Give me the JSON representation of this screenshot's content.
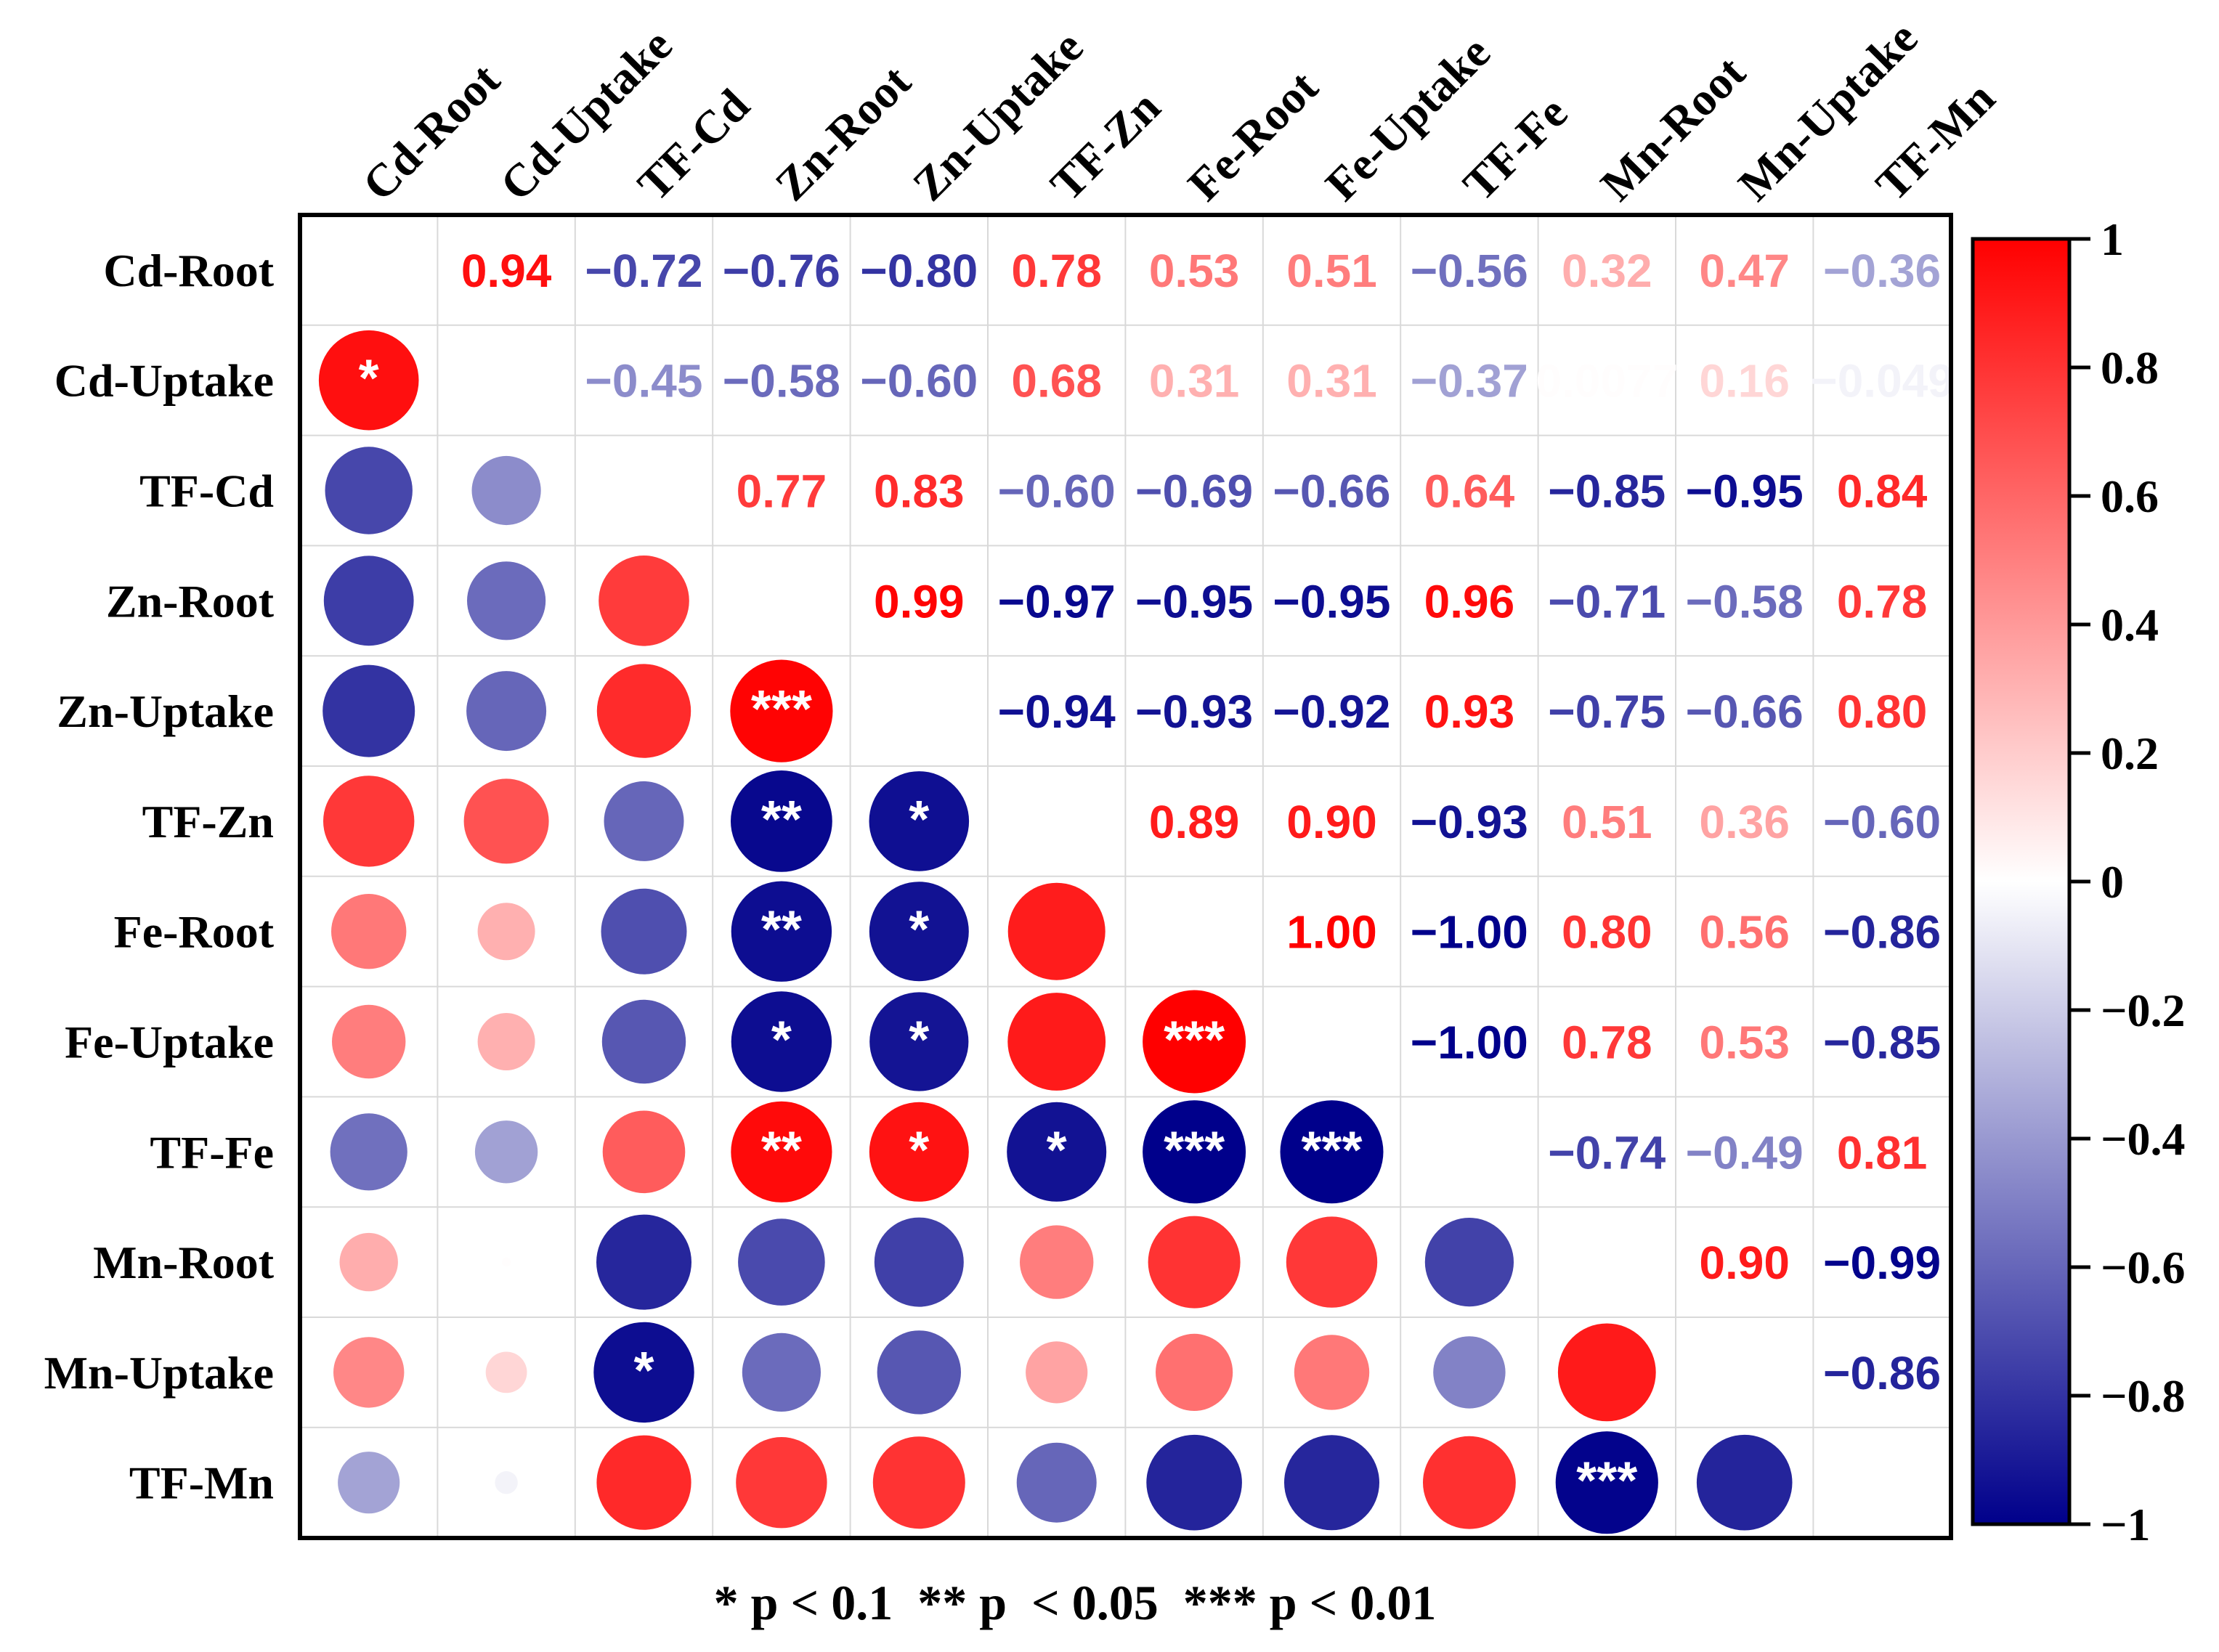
{
  "chart_data": {
    "type": "heatmap",
    "variables": [
      "Cd-Root",
      "Cd-Uptake",
      "TF-Cd",
      "Zn-Root",
      "Zn-Uptake",
      "TF-Zn",
      "Fe-Root",
      "Fe-Uptake",
      "TF-Fe",
      "Mn-Root",
      "Mn-Uptake",
      "TF-Mn"
    ],
    "matrix": [
      [
        null,
        0.94,
        -0.72,
        -0.76,
        -0.8,
        0.78,
        0.53,
        0.51,
        -0.56,
        0.32,
        0.47,
        -0.36
      ],
      [
        0.94,
        null,
        -0.45,
        -0.58,
        -0.6,
        0.68,
        0.31,
        0.31,
        -0.37,
        0.0077,
        0.16,
        -0.049
      ],
      [
        -0.72,
        -0.45,
        null,
        0.77,
        0.83,
        -0.6,
        -0.69,
        -0.66,
        0.64,
        -0.85,
        -0.95,
        0.84
      ],
      [
        -0.76,
        -0.58,
        0.77,
        null,
        0.99,
        -0.97,
        -0.95,
        -0.95,
        0.96,
        -0.71,
        -0.58,
        0.78
      ],
      [
        -0.8,
        -0.6,
        0.83,
        0.99,
        null,
        -0.94,
        -0.93,
        -0.92,
        0.93,
        -0.75,
        -0.66,
        0.8
      ],
      [
        0.78,
        0.68,
        -0.6,
        -0.97,
        -0.94,
        null,
        0.89,
        0.9,
        -0.93,
        0.51,
        0.36,
        -0.6
      ],
      [
        0.53,
        0.31,
        -0.69,
        -0.95,
        -0.93,
        0.89,
        null,
        1.0,
        -1.0,
        0.8,
        0.56,
        -0.86
      ],
      [
        0.51,
        0.31,
        -0.66,
        -0.95,
        -0.92,
        0.9,
        1.0,
        null,
        -1.0,
        0.78,
        0.53,
        -0.85
      ],
      [
        -0.56,
        -0.37,
        0.64,
        0.96,
        0.93,
        -0.93,
        -1.0,
        -1.0,
        null,
        -0.74,
        -0.49,
        0.81
      ],
      [
        0.32,
        0.0077,
        -0.85,
        -0.71,
        -0.75,
        0.51,
        0.8,
        0.78,
        -0.74,
        null,
        0.9,
        -0.99
      ],
      [
        0.47,
        0.16,
        -0.95,
        -0.58,
        -0.66,
        0.36,
        0.56,
        0.53,
        -0.49,
        0.9,
        null,
        -0.86
      ],
      [
        -0.36,
        -0.049,
        0.84,
        0.78,
        0.8,
        -0.6,
        -0.86,
        -0.85,
        0.81,
        -0.99,
        -0.86,
        null
      ]
    ],
    "upper_labels": [
      [
        null,
        "0.94",
        "−0.72",
        "−0.76",
        "−0.80",
        "0.78",
        "0.53",
        "0.51",
        "−0.56",
        "0.32",
        "0.47",
        "−0.36"
      ],
      [
        null,
        null,
        "−0.45",
        "−0.58",
        "−0.60",
        "0.68",
        "0.31",
        "0.31",
        "−0.37",
        "0.0077",
        "0.16",
        "−0.049"
      ],
      [
        null,
        null,
        null,
        "0.77",
        "0.83",
        "−0.60",
        "−0.69",
        "−0.66",
        "0.64",
        "−0.85",
        "−0.95",
        "0.84"
      ],
      [
        null,
        null,
        null,
        null,
        "0.99",
        "−0.97",
        "−0.95",
        "−0.95",
        "0.96",
        "−0.71",
        "−0.58",
        "0.78"
      ],
      [
        null,
        null,
        null,
        null,
        null,
        "−0.94",
        "−0.93",
        "−0.92",
        "0.93",
        "−0.75",
        "−0.66",
        "0.80"
      ],
      [
        null,
        null,
        null,
        null,
        null,
        null,
        "0.89",
        "0.90",
        "−0.93",
        "0.51",
        "0.36",
        "−0.60"
      ],
      [
        null,
        null,
        null,
        null,
        null,
        null,
        null,
        "1.00",
        "−1.00",
        "0.80",
        "0.56",
        "−0.86"
      ],
      [
        null,
        null,
        null,
        null,
        null,
        null,
        null,
        null,
        "−1.00",
        "0.78",
        "0.53",
        "−0.85"
      ],
      [
        null,
        null,
        null,
        null,
        null,
        null,
        null,
        null,
        null,
        "−0.74",
        "−0.49",
        "0.81"
      ],
      [
        null,
        null,
        null,
        null,
        null,
        null,
        null,
        null,
        null,
        null,
        "0.90",
        "−0.99"
      ],
      [
        null,
        null,
        null,
        null,
        null,
        null,
        null,
        null,
        null,
        null,
        null,
        "−0.86"
      ],
      [
        null,
        null,
        null,
        null,
        null,
        null,
        null,
        null,
        null,
        null,
        null,
        null
      ]
    ],
    "significance": [
      [
        null,
        null,
        null,
        null,
        null,
        null,
        null,
        null,
        null,
        null,
        null,
        null
      ],
      [
        "*",
        null,
        null,
        null,
        null,
        null,
        null,
        null,
        null,
        null,
        null,
        null
      ],
      [
        null,
        null,
        null,
        null,
        null,
        null,
        null,
        null,
        null,
        null,
        null,
        null
      ],
      [
        null,
        null,
        null,
        null,
        null,
        null,
        null,
        null,
        null,
        null,
        null,
        null
      ],
      [
        null,
        null,
        null,
        "***",
        null,
        null,
        null,
        null,
        null,
        null,
        null,
        null
      ],
      [
        null,
        null,
        null,
        "**",
        "*",
        null,
        null,
        null,
        null,
        null,
        null,
        null
      ],
      [
        null,
        null,
        null,
        "**",
        "*",
        null,
        null,
        null,
        null,
        null,
        null,
        null
      ],
      [
        null,
        null,
        null,
        "*",
        "*",
        null,
        "***",
        null,
        null,
        null,
        null,
        null
      ],
      [
        null,
        null,
        null,
        "**",
        "*",
        "*",
        "***",
        "***",
        null,
        null,
        null,
        null
      ],
      [
        null,
        null,
        null,
        null,
        null,
        null,
        null,
        null,
        null,
        null,
        null,
        null
      ],
      [
        null,
        null,
        "*",
        null,
        null,
        null,
        null,
        null,
        null,
        null,
        null,
        null
      ],
      [
        null,
        null,
        null,
        null,
        null,
        null,
        null,
        null,
        null,
        "***",
        null,
        null
      ]
    ],
    "colorbar": {
      "range": [
        -1,
        1
      ],
      "ticks": [
        "1",
        "0.8",
        "0.6",
        "0.4",
        "0.2",
        "0",
        "−0.2",
        "−0.4",
        "−0.6",
        "−0.8",
        "−1"
      ],
      "tick_values": [
        1,
        0.8,
        0.6,
        0.4,
        0.2,
        0,
        -0.2,
        -0.4,
        -0.6,
        -0.8,
        -1
      ]
    },
    "legend_text": "* p < 0.1  ** p  < 0.05  *** p < 0.01"
  },
  "colors": {
    "positive": "#ff0000",
    "negative": "#00008b",
    "neutral": "#ffffff",
    "grid": "#d9d9d9",
    "border": "#000000"
  }
}
